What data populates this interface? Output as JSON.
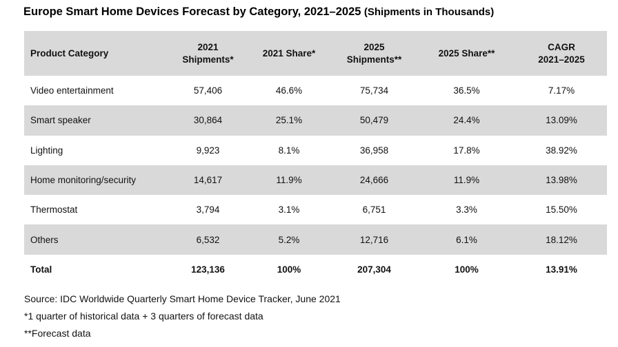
{
  "title": "Europe Smart Home Devices Forecast by Category, 2021–2025",
  "subtitle": "(Shipments in Thousands)",
  "chart_data": {
    "type": "table",
    "title": "Europe Smart Home Devices Forecast by Category, 2021–2025",
    "subtitle": "(Shipments in Thousands)",
    "columns": [
      {
        "line1": "Product Category",
        "line2": ""
      },
      {
        "line1": "2021",
        "line2": "Shipments*"
      },
      {
        "line1": "2021 Share*",
        "line2": ""
      },
      {
        "line1": "2025",
        "line2": "Shipments**"
      },
      {
        "line1": "2025 Share**",
        "line2": ""
      },
      {
        "line1": "CAGR",
        "line2": "2021–2025"
      }
    ],
    "rows": [
      [
        "Video entertainment",
        "57,406",
        "46.6%",
        "75,734",
        "36.5%",
        "7.17%"
      ],
      [
        "Smart speaker",
        "30,864",
        "25.1%",
        "50,479",
        "24.4%",
        "13.09%"
      ],
      [
        "Lighting",
        "9,923",
        "8.1%",
        "36,958",
        "17.8%",
        "38.92%"
      ],
      [
        "Home monitoring/security",
        "14,617",
        "11.9%",
        "24,666",
        "11.9%",
        "13.98%"
      ],
      [
        "Thermostat",
        "3,794",
        "3.1%",
        "6,751",
        "3.3%",
        "15.50%"
      ],
      [
        "Others",
        "6,532",
        "5.2%",
        "12,716",
        "6.1%",
        "18.12%"
      ]
    ],
    "total": [
      "Total",
      "123,136",
      "100%",
      "207,304",
      "100%",
      "13.91%"
    ]
  },
  "footnotes": {
    "source": "Source: IDC Worldwide Quarterly Smart Home Device Tracker, June 2021",
    "note1": "*1 quarter of historical data + 3 quarters of forecast data",
    "note2": "**Forecast data"
  },
  "colors": {
    "band": "#d9d9d9",
    "text": "#111111"
  }
}
